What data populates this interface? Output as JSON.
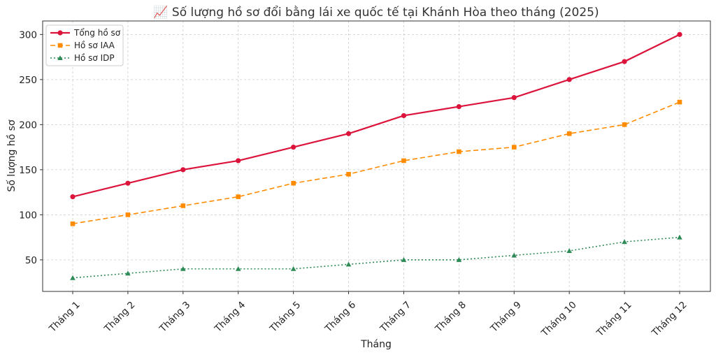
{
  "chart_data": {
    "type": "line",
    "title": "📈 Số lượng hồ sơ đổi bằng lái xe quốc tế tại Khánh Hòa theo tháng (2025)",
    "xlabel": "Tháng",
    "ylabel": "Số lượng hồ sơ",
    "categories": [
      "Tháng 1",
      "Tháng 2",
      "Tháng 3",
      "Tháng 4",
      "Tháng 5",
      "Tháng 6",
      "Tháng 7",
      "Tháng 8",
      "Tháng 9",
      "Tháng 10",
      "Tháng 11",
      "Tháng 12"
    ],
    "ylim": [
      15,
      315
    ],
    "yticks": [
      50,
      100,
      150,
      200,
      250,
      300
    ],
    "grid": true,
    "legend_position": "top-left",
    "series": [
      {
        "name": "Tổng hồ sơ",
        "values": [
          120,
          135,
          150,
          160,
          175,
          190,
          210,
          220,
          230,
          250,
          270,
          300
        ],
        "color": "#dc143c",
        "marker": "circle",
        "dash": "solid"
      },
      {
        "name": "Hồ sơ IAA",
        "values": [
          90,
          100,
          110,
          120,
          135,
          145,
          160,
          170,
          175,
          190,
          200,
          225
        ],
        "color": "#ff8c00",
        "marker": "square",
        "dash": "dashed"
      },
      {
        "name": "Hồ sơ IDP",
        "values": [
          30,
          35,
          40,
          40,
          40,
          45,
          50,
          50,
          55,
          60,
          70,
          75
        ],
        "color": "#2e8b57",
        "marker": "triangle",
        "dash": "dotted"
      }
    ]
  }
}
